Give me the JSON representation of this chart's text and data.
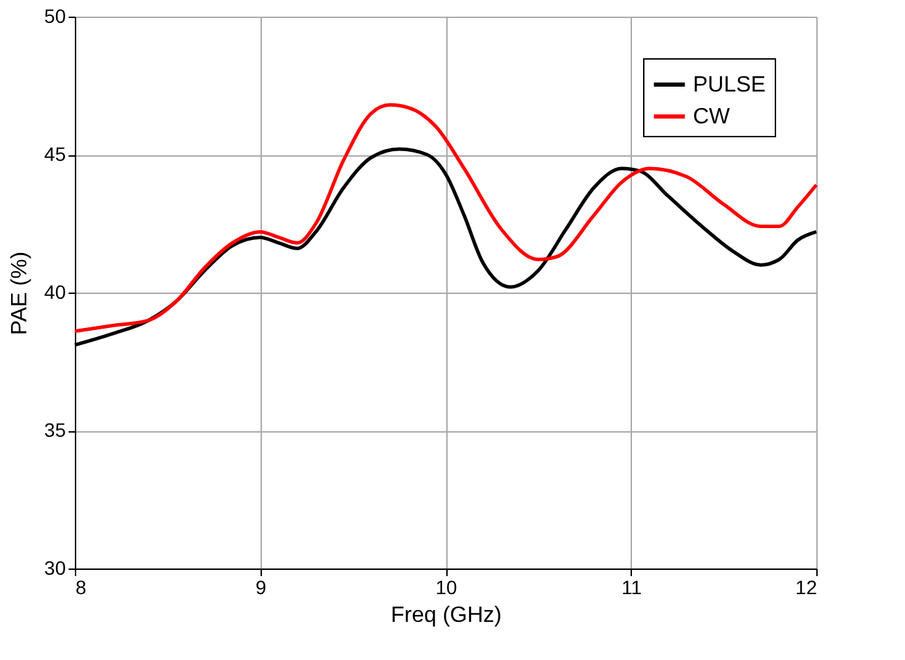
{
  "chart_data": {
    "type": "line",
    "xlabel": "Freq (GHz)",
    "ylabel": "PAE (%)",
    "xlim": [
      8,
      12
    ],
    "xticks": [
      8,
      9,
      10,
      11,
      12
    ],
    "ylim": [
      30,
      50
    ],
    "yticks": [
      30,
      35,
      40,
      45,
      50
    ],
    "grid": true,
    "legend": "top right",
    "marker": "none",
    "line_style": "solid",
    "series": [
      {
        "name": "PULSE",
        "color": "#000000",
        "x": [
          8,
          8.2,
          8.4,
          8.55,
          8.7,
          8.85,
          9.0,
          9.1,
          9.2,
          9.3,
          9.45,
          9.6,
          9.75,
          9.9,
          10.0,
          10.1,
          10.2,
          10.35,
          10.5,
          10.65,
          10.8,
          10.95,
          11.05,
          11.2,
          11.4,
          11.55,
          11.7,
          11.8,
          11.9,
          12.0
        ],
        "values": [
          38.1,
          38.5,
          39.0,
          39.7,
          40.8,
          41.7,
          42.0,
          41.8,
          41.6,
          42.2,
          43.8,
          44.9,
          45.2,
          45.0,
          44.3,
          42.8,
          41.1,
          40.2,
          40.8,
          42.3,
          43.8,
          44.5,
          44.4,
          43.5,
          42.3,
          41.5,
          41.0,
          41.2,
          41.9,
          42.2
        ]
      },
      {
        "name": "CW",
        "color": "#ff0000",
        "x": [
          8,
          8.2,
          8.4,
          8.55,
          8.7,
          8.85,
          9.0,
          9.1,
          9.2,
          9.3,
          9.45,
          9.6,
          9.7,
          9.8,
          9.95,
          10.1,
          10.3,
          10.5,
          10.6,
          10.8,
          10.95,
          11.1,
          11.3,
          11.5,
          11.7,
          11.8,
          11.9,
          12.0
        ],
        "values": [
          38.6,
          38.8,
          39.0,
          39.7,
          40.9,
          41.8,
          42.2,
          42.0,
          41.8,
          42.5,
          44.8,
          46.5,
          46.8,
          46.7,
          46.0,
          44.5,
          42.3,
          41.2,
          41.3,
          42.8,
          44.0,
          44.5,
          44.2,
          43.2,
          42.4,
          42.4,
          43.1,
          43.9
        ]
      }
    ]
  }
}
